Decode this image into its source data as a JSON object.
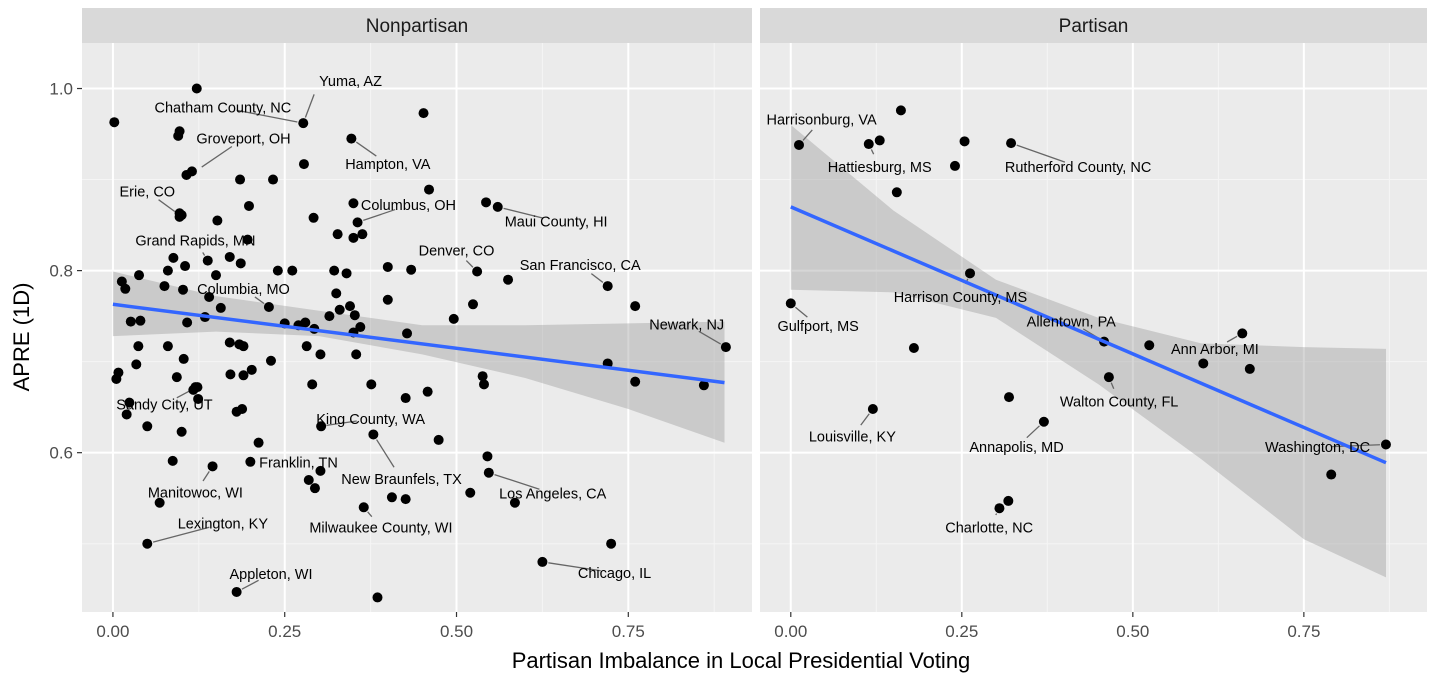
{
  "chart_data": {
    "type": "scatter",
    "xlabel": "Partisan Imbalance in Local Presidential Voting",
    "ylabel": "APRE (1D)",
    "x_ticks": [
      0,
      0.25,
      0.5,
      0.75
    ],
    "x_tick_labels": [
      "0.00",
      "0.25",
      "0.50",
      "0.75"
    ],
    "y_ticks": [
      0.6,
      0.8,
      1.0
    ],
    "y_tick_labels": [
      "0.6",
      "0.8",
      "1.0"
    ],
    "xlim": [
      -0.045,
      0.93
    ],
    "ylim": [
      0.425,
      1.05
    ],
    "grid": true,
    "colors": {
      "point": "#000000",
      "fit_line": "#3366ff",
      "ribbon": "#999999",
      "panel": "#ebebeb",
      "strip": "#d9d9d9"
    },
    "panels": [
      {
        "name": "Nonpartisan",
        "fit": {
          "x": [
            0,
            0.89
          ],
          "y": [
            0.763,
            0.677
          ]
        },
        "ribbon": {
          "x": [
            0,
            0.15,
            0.3,
            0.45,
            0.6,
            0.75,
            0.89
          ],
          "lower": [
            0.728,
            0.733,
            0.728,
            0.708,
            0.682,
            0.648,
            0.611
          ],
          "upper": [
            0.799,
            0.772,
            0.756,
            0.74,
            0.74,
            0.742,
            0.744
          ]
        },
        "points": [
          {
            "x": 0.002,
            "y": 0.963
          },
          {
            "x": 0.005,
            "y": 0.681
          },
          {
            "x": 0.008,
            "y": 0.688
          },
          {
            "x": 0.013,
            "y": 0.788
          },
          {
            "x": 0.018,
            "y": 0.78
          },
          {
            "x": 0.02,
            "y": 0.642
          },
          {
            "x": 0.024,
            "y": 0.655
          },
          {
            "x": 0.026,
            "y": 0.744
          },
          {
            "x": 0.034,
            "y": 0.697
          },
          {
            "x": 0.037,
            "y": 0.717
          },
          {
            "x": 0.038,
            "y": 0.795
          },
          {
            "x": 0.04,
            "y": 0.745
          },
          {
            "x": 0.05,
            "y": 0.629
          },
          {
            "x": 0.05,
            "y": 0.5
          },
          {
            "x": 0.068,
            "y": 0.545
          },
          {
            "x": 0.075,
            "y": 0.783
          },
          {
            "x": 0.08,
            "y": 0.8
          },
          {
            "x": 0.08,
            "y": 0.717
          },
          {
            "x": 0.087,
            "y": 0.591
          },
          {
            "x": 0.088,
            "y": 0.814
          },
          {
            "x": 0.093,
            "y": 0.683
          },
          {
            "x": 0.095,
            "y": 0.948
          },
          {
            "x": 0.097,
            "y": 0.953
          },
          {
            "x": 0.097,
            "y": 0.863
          },
          {
            "x": 0.097,
            "y": 0.859
          },
          {
            "x": 0.1,
            "y": 0.623
          },
          {
            "x": 0.102,
            "y": 0.779
          },
          {
            "x": 0.103,
            "y": 0.703
          },
          {
            "x": 0.105,
            "y": 0.805
          },
          {
            "x": 0.107,
            "y": 0.905
          },
          {
            "x": 0.108,
            "y": 0.743
          },
          {
            "x": 0.115,
            "y": 0.909
          },
          {
            "x": 0.117,
            "y": 0.669
          },
          {
            "x": 0.12,
            "y": 0.672
          },
          {
            "x": 0.122,
            "y": 1.0
          },
          {
            "x": 0.123,
            "y": 0.672
          },
          {
            "x": 0.124,
            "y": 0.659
          },
          {
            "x": 0.134,
            "y": 0.749
          },
          {
            "x": 0.138,
            "y": 0.811
          },
          {
            "x": 0.14,
            "y": 0.771
          },
          {
            "x": 0.145,
            "y": 0.585
          },
          {
            "x": 0.15,
            "y": 0.795
          },
          {
            "x": 0.152,
            "y": 0.855
          },
          {
            "x": 0.157,
            "y": 0.759
          },
          {
            "x": 0.17,
            "y": 0.815
          },
          {
            "x": 0.17,
            "y": 0.721
          },
          {
            "x": 0.171,
            "y": 0.686
          },
          {
            "x": 0.18,
            "y": 0.645
          },
          {
            "x": 0.18,
            "y": 0.447
          },
          {
            "x": 0.184,
            "y": 0.719
          },
          {
            "x": 0.185,
            "y": 0.9
          },
          {
            "x": 0.186,
            "y": 0.808
          },
          {
            "x": 0.188,
            "y": 0.648
          },
          {
            "x": 0.19,
            "y": 0.717
          },
          {
            "x": 0.19,
            "y": 0.685
          },
          {
            "x": 0.196,
            "y": 0.834
          },
          {
            "x": 0.198,
            "y": 0.871
          },
          {
            "x": 0.2,
            "y": 0.59
          },
          {
            "x": 0.202,
            "y": 0.691
          },
          {
            "x": 0.212,
            "y": 0.611
          },
          {
            "x": 0.227,
            "y": 0.76
          },
          {
            "x": 0.23,
            "y": 0.701
          },
          {
            "x": 0.233,
            "y": 0.9
          },
          {
            "x": 0.24,
            "y": 0.8
          },
          {
            "x": 0.25,
            "y": 0.742
          },
          {
            "x": 0.261,
            "y": 0.8
          },
          {
            "x": 0.27,
            "y": 0.74
          },
          {
            "x": 0.278,
            "y": 0.917
          },
          {
            "x": 0.28,
            "y": 0.743
          },
          {
            "x": 0.282,
            "y": 0.717
          },
          {
            "x": 0.285,
            "y": 0.57
          },
          {
            "x": 0.29,
            "y": 0.675
          },
          {
            "x": 0.292,
            "y": 0.858
          },
          {
            "x": 0.293,
            "y": 0.736
          },
          {
            "x": 0.294,
            "y": 0.561
          },
          {
            "x": 0.302,
            "y": 0.708
          },
          {
            "x": 0.303,
            "y": 0.629
          },
          {
            "x": 0.315,
            "y": 0.75
          },
          {
            "x": 0.322,
            "y": 0.8
          },
          {
            "x": 0.325,
            "y": 0.775
          },
          {
            "x": 0.327,
            "y": 0.84
          },
          {
            "x": 0.33,
            "y": 0.757
          },
          {
            "x": 0.34,
            "y": 0.797
          },
          {
            "x": 0.345,
            "y": 0.761
          },
          {
            "x": 0.35,
            "y": 0.836
          },
          {
            "x": 0.35,
            "y": 0.874
          },
          {
            "x": 0.35,
            "y": 0.732
          },
          {
            "x": 0.352,
            "y": 0.751
          },
          {
            "x": 0.354,
            "y": 0.708
          },
          {
            "x": 0.356,
            "y": 0.853
          },
          {
            "x": 0.36,
            "y": 0.738
          },
          {
            "x": 0.363,
            "y": 0.84
          },
          {
            "x": 0.365,
            "y": 0.54
          },
          {
            "x": 0.376,
            "y": 0.675
          },
          {
            "x": 0.385,
            "y": 0.441
          },
          {
            "x": 0.4,
            "y": 0.804
          },
          {
            "x": 0.4,
            "y": 0.768
          },
          {
            "x": 0.406,
            "y": 0.551
          },
          {
            "x": 0.426,
            "y": 0.549
          },
          {
            "x": 0.428,
            "y": 0.731
          },
          {
            "x": 0.434,
            "y": 0.801
          },
          {
            "x": 0.452,
            "y": 0.973
          },
          {
            "x": 0.458,
            "y": 0.667
          },
          {
            "x": 0.46,
            "y": 0.889
          },
          {
            "x": 0.474,
            "y": 0.614
          },
          {
            "x": 0.496,
            "y": 0.747
          },
          {
            "x": 0.52,
            "y": 0.556
          },
          {
            "x": 0.524,
            "y": 0.763
          },
          {
            "x": 0.53,
            "y": 0.799
          },
          {
            "x": 0.538,
            "y": 0.684
          },
          {
            "x": 0.54,
            "y": 0.675
          },
          {
            "x": 0.543,
            "y": 0.875
          },
          {
            "x": 0.545,
            "y": 0.596
          },
          {
            "x": 0.56,
            "y": 0.87
          },
          {
            "x": 0.575,
            "y": 0.79
          },
          {
            "x": 0.585,
            "y": 0.545
          },
          {
            "x": 0.625,
            "y": 0.48
          },
          {
            "x": 0.72,
            "y": 0.698
          },
          {
            "x": 0.72,
            "y": 0.783
          },
          {
            "x": 0.725,
            "y": 0.5
          },
          {
            "x": 0.76,
            "y": 0.761
          },
          {
            "x": 0.76,
            "y": 0.678
          },
          {
            "x": 0.86,
            "y": 0.674
          },
          {
            "x": 0.892,
            "y": 0.716
          },
          {
            "x": 0.1,
            "y": 0.861
          },
          {
            "x": 0.347,
            "y": 0.945
          },
          {
            "x": 0.277,
            "y": 0.962
          },
          {
            "x": 0.379,
            "y": 0.62
          },
          {
            "x": 0.426,
            "y": 0.66
          },
          {
            "x": 0.547,
            "y": 0.578
          },
          {
            "x": 0.302,
            "y": 0.58
          }
        ],
        "labels": [
          {
            "text": "Yuma, AZ",
            "x": 0.277,
            "y": 0.962,
            "tx": 0.3,
            "ty": 1.008,
            "anchor": "start"
          },
          {
            "text": "Chatham County, NC",
            "x": 0.277,
            "y": 0.962,
            "tx": 0.16,
            "ty": 0.979,
            "anchor": "middle"
          },
          {
            "text": "Groveport, OH",
            "x": 0.122,
            "y": 0.91,
            "tx": 0.19,
            "ty": 0.945,
            "anchor": "middle"
          },
          {
            "text": "Hampton, VA",
            "x": 0.347,
            "y": 0.945,
            "tx": 0.4,
            "ty": 0.917,
            "anchor": "middle"
          },
          {
            "text": "Erie, CO",
            "x": 0.097,
            "y": 0.861,
            "tx": 0.05,
            "ty": 0.887,
            "anchor": "middle"
          },
          {
            "text": "Columbus, OH",
            "x": 0.356,
            "y": 0.853,
            "tx": 0.43,
            "ty": 0.872,
            "anchor": "middle"
          },
          {
            "text": "Maui County, HI",
            "x": 0.56,
            "y": 0.87,
            "tx": 0.645,
            "ty": 0.854,
            "anchor": "middle"
          },
          {
            "text": "Grand Rapids, MN",
            "x": 0.138,
            "y": 0.811,
            "tx": 0.12,
            "ty": 0.833,
            "anchor": "middle"
          },
          {
            "text": "Denver, CO",
            "x": 0.53,
            "y": 0.799,
            "tx": 0.5,
            "ty": 0.822,
            "anchor": "middle"
          },
          {
            "text": "San Francisco, CA",
            "x": 0.72,
            "y": 0.783,
            "tx": 0.68,
            "ty": 0.806,
            "anchor": "middle"
          },
          {
            "text": "Columbia, MO",
            "x": 0.227,
            "y": 0.76,
            "tx": 0.19,
            "ty": 0.78,
            "anchor": "middle"
          },
          {
            "text": "Newark, NJ",
            "x": 0.892,
            "y": 0.716,
            "tx": 0.835,
            "ty": 0.741,
            "anchor": "middle"
          },
          {
            "text": "Sandy City, UT",
            "x": 0.122,
            "y": 0.672,
            "tx": 0.075,
            "ty": 0.653,
            "anchor": "middle"
          },
          {
            "text": "King County, WA",
            "x": 0.302,
            "y": 0.629,
            "tx": 0.375,
            "ty": 0.637,
            "anchor": "middle"
          },
          {
            "text": "Franklin, TN",
            "x": 0.285,
            "y": 0.57,
            "tx": 0.27,
            "ty": 0.589,
            "anchor": "middle"
          },
          {
            "text": "New Braunfels, TX",
            "x": 0.379,
            "y": 0.62,
            "tx": 0.42,
            "ty": 0.571,
            "anchor": "middle"
          },
          {
            "text": "Los Angeles, CA",
            "x": 0.547,
            "y": 0.578,
            "tx": 0.64,
            "ty": 0.555,
            "anchor": "middle"
          },
          {
            "text": "Manitowoc, WI",
            "x": 0.145,
            "y": 0.585,
            "tx": 0.12,
            "ty": 0.556,
            "anchor": "middle"
          },
          {
            "text": "Lexington, KY",
            "x": 0.05,
            "y": 0.5,
            "tx": 0.16,
            "ty": 0.522,
            "anchor": "middle"
          },
          {
            "text": "Milwaukee County, WI",
            "x": 0.365,
            "y": 0.54,
            "tx": 0.39,
            "ty": 0.518,
            "anchor": "middle"
          },
          {
            "text": "Chicago, IL",
            "x": 0.625,
            "y": 0.48,
            "tx": 0.73,
            "ty": 0.468,
            "anchor": "middle"
          },
          {
            "text": "Appleton, WI",
            "x": 0.18,
            "y": 0.447,
            "tx": 0.23,
            "ty": 0.467,
            "anchor": "middle"
          }
        ]
      },
      {
        "name": "Partisan",
        "fit": {
          "x": [
            0,
            0.87
          ],
          "y": [
            0.87,
            0.589
          ]
        },
        "ribbon": {
          "x": [
            0,
            0.15,
            0.3,
            0.45,
            0.6,
            0.75,
            0.87
          ],
          "lower": [
            0.779,
            0.776,
            0.748,
            0.675,
            0.593,
            0.505,
            0.463
          ],
          "upper": [
            0.96,
            0.866,
            0.79,
            0.748,
            0.72,
            0.716,
            0.714
          ]
        },
        "points": [
          {
            "x": 0.0,
            "y": 0.764
          },
          {
            "x": 0.012,
            "y": 0.938
          },
          {
            "x": 0.114,
            "y": 0.939
          },
          {
            "x": 0.12,
            "y": 0.648
          },
          {
            "x": 0.13,
            "y": 0.943
          },
          {
            "x": 0.155,
            "y": 0.886
          },
          {
            "x": 0.161,
            "y": 0.976
          },
          {
            "x": 0.18,
            "y": 0.715
          },
          {
            "x": 0.24,
            "y": 0.915
          },
          {
            "x": 0.254,
            "y": 0.942
          },
          {
            "x": 0.262,
            "y": 0.797
          },
          {
            "x": 0.305,
            "y": 0.539
          },
          {
            "x": 0.318,
            "y": 0.547
          },
          {
            "x": 0.319,
            "y": 0.661
          },
          {
            "x": 0.322,
            "y": 0.94
          },
          {
            "x": 0.37,
            "y": 0.634
          },
          {
            "x": 0.458,
            "y": 0.722
          },
          {
            "x": 0.465,
            "y": 0.683
          },
          {
            "x": 0.524,
            "y": 0.718
          },
          {
            "x": 0.603,
            "y": 0.698
          },
          {
            "x": 0.66,
            "y": 0.731
          },
          {
            "x": 0.671,
            "y": 0.692
          },
          {
            "x": 0.79,
            "y": 0.576
          },
          {
            "x": 0.87,
            "y": 0.609
          }
        ],
        "labels": [
          {
            "text": "Harrisonburg, VA",
            "x": 0.012,
            "y": 0.938,
            "tx": 0.045,
            "ty": 0.966,
            "anchor": "middle"
          },
          {
            "text": "Hattiesburg, MS",
            "x": 0.114,
            "y": 0.939,
            "tx": 0.13,
            "ty": 0.914,
            "anchor": "middle"
          },
          {
            "text": "Rutherford County, NC",
            "x": 0.322,
            "y": 0.94,
            "tx": 0.42,
            "ty": 0.914,
            "anchor": "middle"
          },
          {
            "text": "Harrison County, MS",
            "x": 0.262,
            "y": 0.797,
            "tx": 0.248,
            "ty": 0.771,
            "anchor": "middle"
          },
          {
            "text": "Gulfport, MS",
            "x": 0.0,
            "y": 0.764,
            "tx": 0.04,
            "ty": 0.739,
            "anchor": "middle"
          },
          {
            "text": "Allentown, PA",
            "x": 0.458,
            "y": 0.722,
            "tx": 0.41,
            "ty": 0.744,
            "anchor": "middle"
          },
          {
            "text": "Ann Arbor, MI",
            "x": 0.66,
            "y": 0.731,
            "tx": 0.62,
            "ty": 0.714,
            "anchor": "middle"
          },
          {
            "text": "Walton County, FL",
            "x": 0.465,
            "y": 0.683,
            "tx": 0.48,
            "ty": 0.656,
            "anchor": "middle"
          },
          {
            "text": "Louisville, KY",
            "x": 0.12,
            "y": 0.648,
            "tx": 0.09,
            "ty": 0.618,
            "anchor": "middle"
          },
          {
            "text": "Annapolis, MD",
            "x": 0.37,
            "y": 0.634,
            "tx": 0.33,
            "ty": 0.606,
            "anchor": "middle"
          },
          {
            "text": "Washington, DC",
            "x": 0.87,
            "y": 0.609,
            "tx": 0.77,
            "ty": 0.606,
            "anchor": "middle"
          },
          {
            "text": "Charlotte, NC",
            "x": 0.305,
            "y": 0.539,
            "tx": 0.29,
            "ty": 0.518,
            "anchor": "middle"
          }
        ]
      }
    ]
  }
}
